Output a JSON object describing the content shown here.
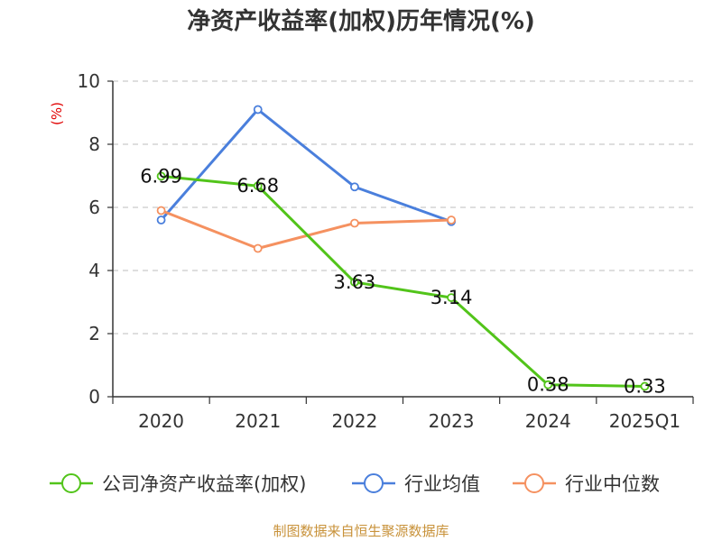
{
  "chart_data": {
    "type": "line",
    "title": "净资产收益率(加权)历年情况(%)",
    "ylabel": "(%)",
    "xlabel": "",
    "categories": [
      "2020",
      "2021",
      "2022",
      "2023",
      "2024",
      "2025Q1"
    ],
    "ylim": [
      0,
      10
    ],
    "yticks": [
      0,
      2,
      4,
      6,
      8,
      10
    ],
    "grid": true,
    "legend_position": "bottom",
    "series": [
      {
        "name": "公司净资产收益率(加权)",
        "color": "#52c41a",
        "values": [
          6.99,
          6.68,
          3.63,
          3.14,
          0.38,
          0.33
        ],
        "labels": [
          "6.99",
          "6.68",
          "3.63",
          "3.14",
          "0.38",
          "0.33"
        ]
      },
      {
        "name": "行业均值",
        "color": "#4a7fdc",
        "values": [
          5.6,
          9.1,
          6.65,
          5.55,
          null,
          null
        ]
      },
      {
        "name": "行业中位数",
        "color": "#f59160",
        "values": [
          5.9,
          4.7,
          5.5,
          5.6,
          null,
          null
        ]
      }
    ]
  },
  "source": "制图数据来自恒生聚源数据库"
}
